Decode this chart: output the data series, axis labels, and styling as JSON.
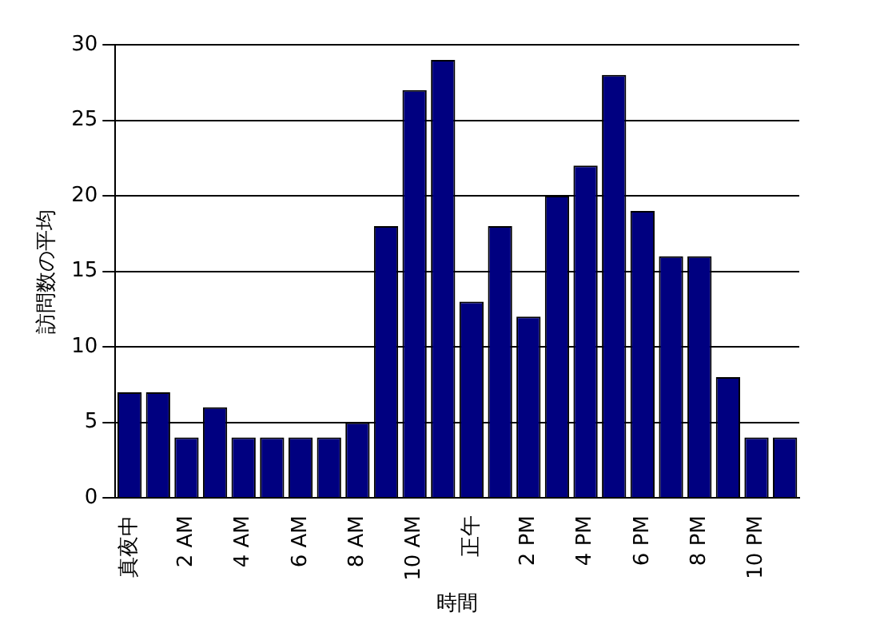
{
  "chart_data": {
    "type": "bar",
    "xlabel": "時間",
    "ylabel": "訪問数の平均",
    "categories": [
      "真夜中",
      null,
      "2 AM",
      null,
      "4 AM",
      null,
      "6 AM",
      null,
      "8 AM",
      null,
      "10 AM",
      null,
      "正午",
      null,
      "2 PM",
      null,
      "4 PM",
      null,
      "6 PM",
      null,
      "8 PM",
      null,
      "10 PM",
      null
    ],
    "values": [
      7,
      7,
      4,
      6,
      4,
      4,
      4,
      4,
      5,
      18,
      27,
      29,
      13,
      18,
      12,
      20,
      22,
      28,
      19,
      16,
      16,
      8,
      4,
      4
    ],
    "color": "#000080",
    "ylim": [
      0,
      30
    ],
    "yticks": [
      0,
      5,
      10,
      15,
      20,
      25,
      30
    ],
    "grid": "y",
    "legend": false
  }
}
